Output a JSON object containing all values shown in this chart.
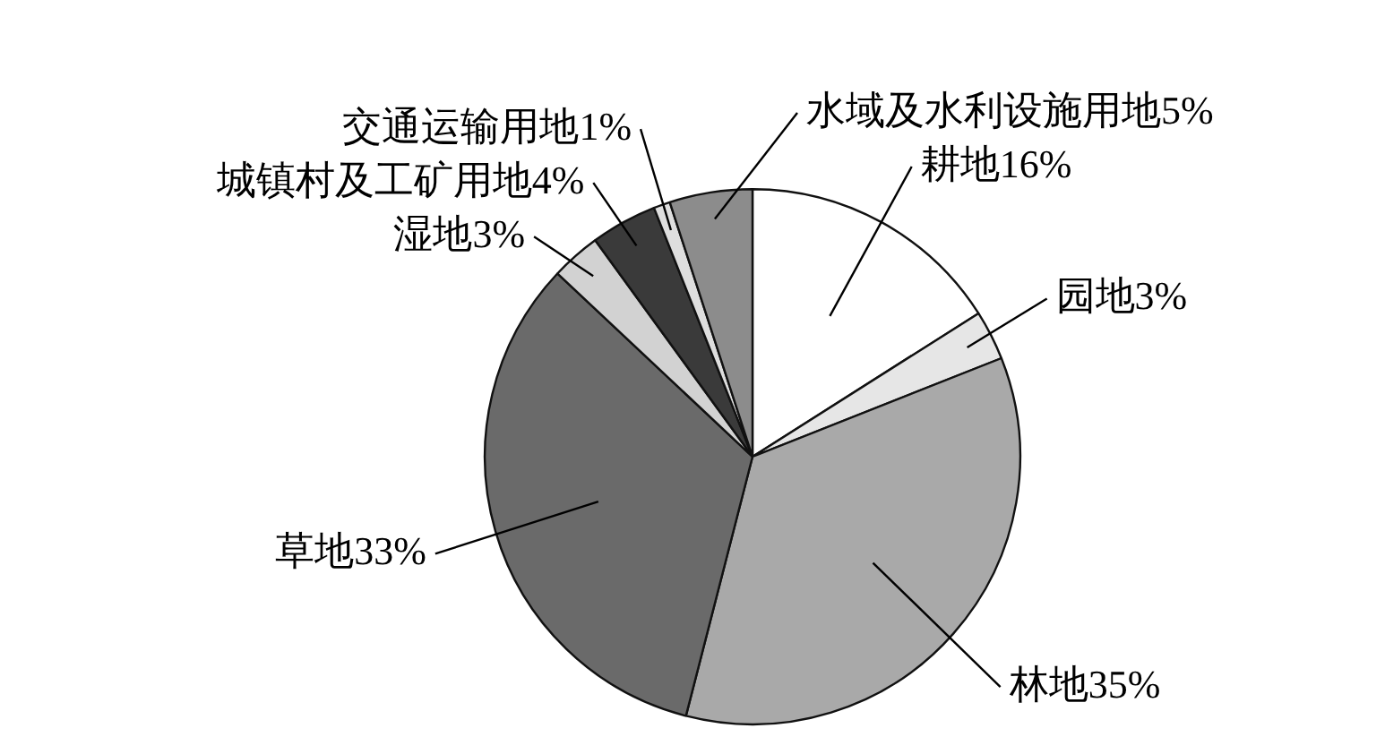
{
  "chart_data": {
    "type": "pie",
    "categories": [
      "耕地",
      "园地",
      "林地",
      "草地",
      "湿地",
      "城镇村及工矿用地",
      "交通运输用地",
      "水域及水利设施用地"
    ],
    "values": [
      16,
      3,
      35,
      33,
      3,
      4,
      1,
      5
    ],
    "value_labels": [
      "16%",
      "3%",
      "35%",
      "33%",
      "3%",
      "4%",
      "1%",
      "5%"
    ],
    "colors": [
      "#ffffff",
      "#e6e6e6",
      "#a9a9a9",
      "#6a6a6a",
      "#d2d2d2",
      "#3a3a3a",
      "#dedede",
      "#8c8c8c"
    ]
  }
}
